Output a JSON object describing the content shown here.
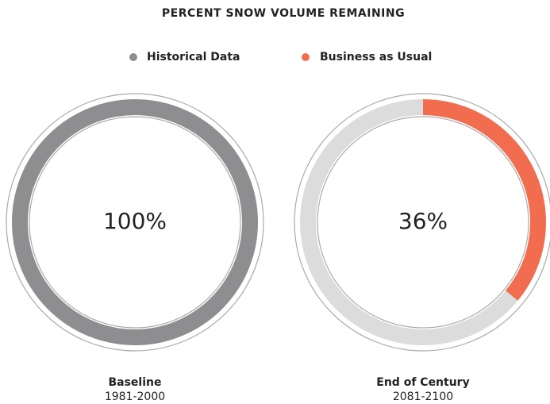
{
  "chart_data": {
    "type": "donut",
    "title": "PERCENT SNOW VOLUME REMAINING",
    "categories": [
      "Baseline",
      "End of Century"
    ],
    "subtitles": [
      "1981-2000",
      "2081-2100"
    ],
    "track_color": "#dcdcdc",
    "series": [
      {
        "name": "Historical Data",
        "color": "#8e8e90",
        "values": [
          100,
          null
        ],
        "value_labels": [
          "100%",
          null
        ]
      },
      {
        "name": "Business as Usual",
        "color": "#f26d4f",
        "values": [
          null,
          36
        ],
        "value_labels": [
          null,
          "36%"
        ]
      }
    ]
  }
}
